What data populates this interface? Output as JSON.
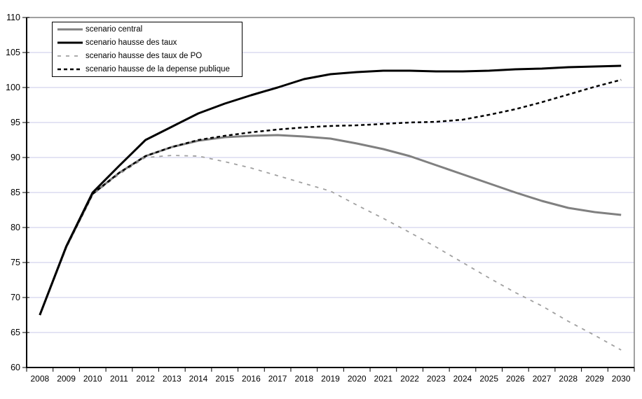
{
  "chart_data": {
    "type": "line",
    "title": "",
    "xlabel": "",
    "ylabel": "",
    "ylim": [
      60,
      110
    ],
    "yticks": [
      60,
      65,
      70,
      75,
      80,
      85,
      90,
      95,
      100,
      105,
      110
    ],
    "grid": true,
    "legend_position": "top-left",
    "gridline_color": "#c9c9e9",
    "axis_color": "#000000",
    "border_color": "#808080",
    "categories": [
      "2008",
      "2009",
      "2010",
      "2011",
      "2012",
      "2013",
      "2014",
      "2015",
      "2016",
      "2017",
      "2018",
      "2019",
      "2020",
      "2021",
      "2022",
      "2023",
      "2024",
      "2025",
      "2026",
      "2027",
      "2028",
      "2029",
      "2030"
    ],
    "series": [
      {
        "name": "scenario central",
        "color": "#808080",
        "width": 3,
        "dash": "",
        "values": [
          67.5,
          77.2,
          84.8,
          87.8,
          90.2,
          91.5,
          92.4,
          92.9,
          93.1,
          93.2,
          93.0,
          92.7,
          92.0,
          91.2,
          90.2,
          88.9,
          87.6,
          86.3,
          85.0,
          83.8,
          82.8,
          82.2,
          81.8
        ]
      },
      {
        "name": "scenario hausse des taux",
        "color": "#000000",
        "width": 3,
        "dash": "",
        "values": [
          67.5,
          77.3,
          85.0,
          88.8,
          92.5,
          94.4,
          96.3,
          97.7,
          98.9,
          100.0,
          101.2,
          101.9,
          102.2,
          102.4,
          102.4,
          102.3,
          102.3,
          102.4,
          102.6,
          102.7,
          102.9,
          103.0,
          103.1
        ]
      },
      {
        "name": "scenario hausse des taux de PO",
        "color": "#a0a0a0",
        "width": 1.8,
        "dash": "5 7",
        "values": [
          67.5,
          77.2,
          84.7,
          87.6,
          90.0,
          90.3,
          90.2,
          89.4,
          88.5,
          87.4,
          86.3,
          85.2,
          83.2,
          81.3,
          79.3,
          77.2,
          75.0,
          72.8,
          70.7,
          68.8,
          66.6,
          64.6,
          62.5
        ]
      },
      {
        "name": "scenario hausse de la depense publique",
        "color": "#000000",
        "width": 2.5,
        "dash": "5 4",
        "values": [
          67.5,
          77.2,
          84.8,
          87.8,
          90.2,
          91.5,
          92.5,
          93.1,
          93.6,
          94.0,
          94.3,
          94.5,
          94.6,
          94.8,
          95.0,
          95.1,
          95.4,
          96.1,
          96.9,
          97.9,
          99.0,
          100.1,
          101.1
        ]
      }
    ]
  }
}
